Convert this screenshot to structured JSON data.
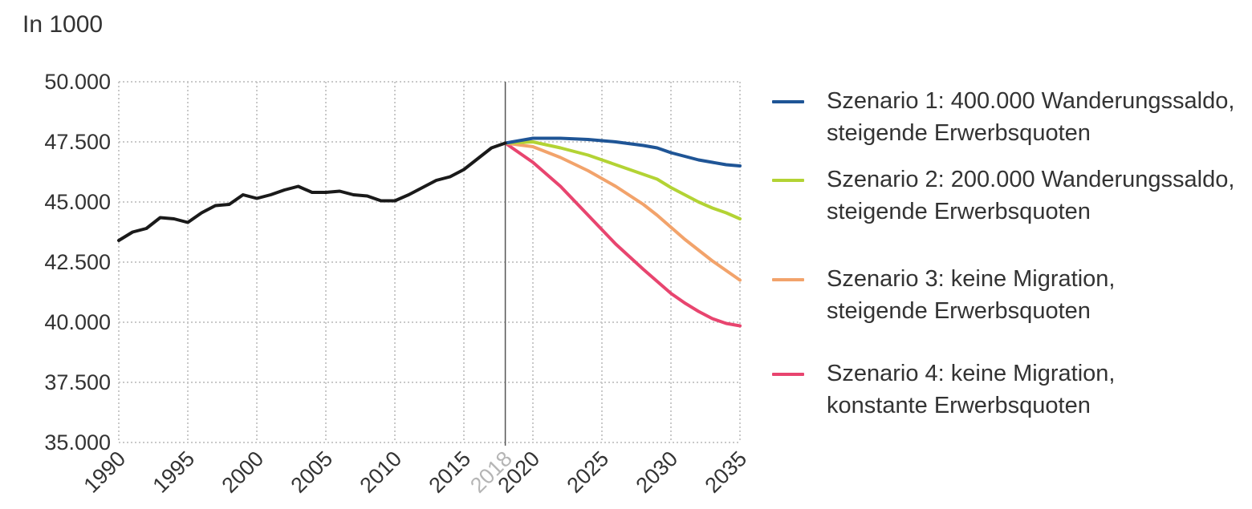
{
  "chart_data": {
    "type": "line",
    "unit_label": "In 1000",
    "xlim": [
      1990,
      2035
    ],
    "ylim": [
      35000,
      50000
    ],
    "y_ticks": [
      35000,
      37500,
      40000,
      42500,
      45000,
      47500,
      50000
    ],
    "y_tick_labels": [
      "35.000",
      "37.500",
      "40.000",
      "42.500",
      "45.000",
      "47.500",
      "50.000"
    ],
    "x_ticks": [
      1990,
      1995,
      2000,
      2005,
      2010,
      2015,
      2018,
      2020,
      2025,
      2030,
      2035
    ],
    "x_tick_labels": [
      "1990",
      "1995",
      "2000",
      "2005",
      "2010",
      "2015",
      "2018",
      "2020",
      "2025",
      "2030",
      "2035"
    ],
    "x_tick_muted": "2018",
    "vertical_marker_x": 2018,
    "grid": "dotted",
    "legend_position": "right",
    "historical": {
      "color": "#1a1a1a",
      "x": [
        1990,
        1991,
        1992,
        1993,
        1994,
        1995,
        1996,
        1997,
        1998,
        1999,
        2000,
        2001,
        2002,
        2003,
        2004,
        2005,
        2006,
        2007,
        2008,
        2009,
        2010,
        2011,
        2012,
        2013,
        2014,
        2015,
        2016,
        2017,
        2018
      ],
      "y": [
        43400,
        43750,
        43900,
        44350,
        44300,
        44150,
        44550,
        44850,
        44900,
        45300,
        45150,
        45300,
        45500,
        45650,
        45400,
        45400,
        45450,
        45300,
        45250,
        45050,
        45050,
        45300,
        45600,
        45900,
        46050,
        46350,
        46800,
        47250,
        47450
      ]
    },
    "series": [
      {
        "name": "Szenario 1: 400.000 Wanderungssaldo, steigende Erwerbsquoten",
        "label_lines": [
          "Szenario 1: 400.000 Wanderungssaldo,",
          "steigende Erwerbsquoten"
        ],
        "color": "#1f5596",
        "x": [
          2018,
          2020,
          2022,
          2024,
          2026,
          2028,
          2029,
          2030,
          2031,
          2032,
          2033,
          2034,
          2035
        ],
        "y": [
          47450,
          47650,
          47650,
          47600,
          47500,
          47350,
          47250,
          47050,
          46900,
          46750,
          46650,
          46550,
          46500
        ]
      },
      {
        "name": "Szenario 2: 200.000 Wanderungssaldo, steigende Erwerbsquoten",
        "label_lines": [
          "Szenario 2: 200.000 Wanderungssaldo,",
          "steigende Erwerbsquoten"
        ],
        "color": "#b3d334",
        "x": [
          2018,
          2020,
          2022,
          2024,
          2026,
          2028,
          2029,
          2030,
          2031,
          2032,
          2033,
          2034,
          2035
        ],
        "y": [
          47450,
          47500,
          47250,
          46950,
          46550,
          46150,
          45950,
          45600,
          45300,
          45000,
          44750,
          44550,
          44300
        ]
      },
      {
        "name": "Szenario 3: keine Migration, steigende Erwerbsquoten",
        "label_lines": [
          "Szenario 3: keine Migration,",
          "steigende Erwerbsquoten"
        ],
        "color": "#f2a36b",
        "x": [
          2018,
          2020,
          2022,
          2024,
          2026,
          2028,
          2029,
          2030,
          2031,
          2032,
          2033,
          2034,
          2035
        ],
        "y": [
          47450,
          47300,
          46850,
          46300,
          45650,
          44900,
          44450,
          43950,
          43450,
          43000,
          42550,
          42150,
          41750
        ]
      },
      {
        "name": "Szenario 4: keine Migration, konstante Erwerbsquoten",
        "label_lines": [
          "Szenario 4: keine Migration,",
          "konstante Erwerbsquoten"
        ],
        "color": "#e8456f",
        "x": [
          2018,
          2020,
          2022,
          2024,
          2026,
          2028,
          2029,
          2030,
          2031,
          2032,
          2033,
          2034,
          2035
        ],
        "y": [
          47450,
          46650,
          45650,
          44450,
          43250,
          42200,
          41700,
          41200,
          40800,
          40450,
          40150,
          39950,
          39850
        ]
      }
    ]
  }
}
